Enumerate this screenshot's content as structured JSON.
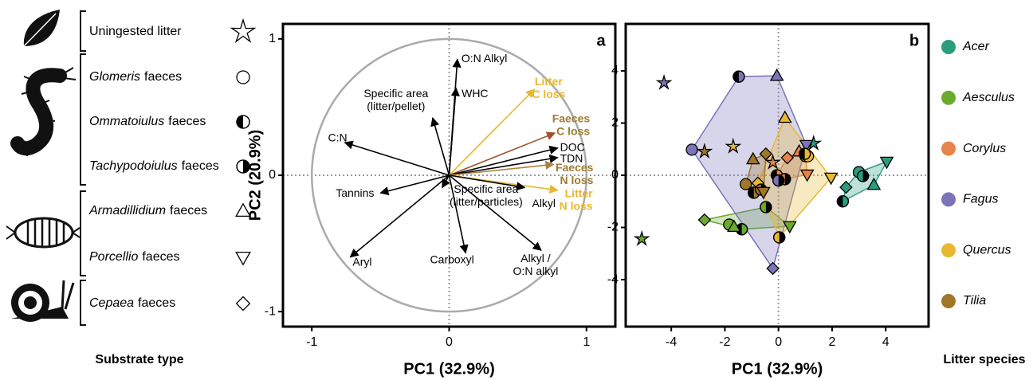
{
  "chart_data": [
    {
      "type": "biplot",
      "title": "a",
      "xlabel": "PC1 (32.9%)",
      "ylabel": "PC2 (20.9%)",
      "xlim": [
        -1.21,
        1.21
      ],
      "ylim": [
        -1.11,
        1.11
      ],
      "xticks": [
        -1,
        0,
        1
      ],
      "yticks": [
        -1,
        0,
        1
      ],
      "zero_lines": true,
      "circle_radius": 1,
      "loadings": [
        {
          "label": [
            "O:N Alkyl"
          ],
          "x": 0.06,
          "y": 0.85,
          "color": "#000000"
        },
        {
          "label": [
            "WHC"
          ],
          "x": 0.05,
          "y": 0.64,
          "color": "#000000"
        },
        {
          "label": [
            "Litter",
            "C loss"
          ],
          "x": 0.62,
          "y": 0.63,
          "color": "#e8b830"
        },
        {
          "label": [
            "Specific area",
            "(litter/pellet)"
          ],
          "x": -0.12,
          "y": 0.42,
          "color": "#000000"
        },
        {
          "label": [
            "C:N"
          ],
          "x": -0.76,
          "y": 0.24,
          "color": "#000000"
        },
        {
          "label": [
            "Faeces",
            "C loss"
          ],
          "x": 0.77,
          "y": 0.31,
          "color": "#a0522d",
          "label_color": "#a07a30"
        },
        {
          "label": [
            "DOC"
          ],
          "x": 0.79,
          "y": 0.2,
          "color": "#000000"
        },
        {
          "label": [
            "TDN"
          ],
          "x": 0.79,
          "y": 0.13,
          "color": "#000000"
        },
        {
          "label": [
            "Faeces",
            "N loss"
          ],
          "x": 0.76,
          "y": 0.08,
          "color": "#b08040",
          "label_color": "#a07a30"
        },
        {
          "label": [
            "Litter",
            "N loss"
          ],
          "x": 0.79,
          "y": -0.11,
          "color": "#e8b830"
        },
        {
          "label": [
            "Alkyl"
          ],
          "x": 0.55,
          "y": -0.09,
          "color": "#000000"
        },
        {
          "label": [
            "Tannins"
          ],
          "x": -0.5,
          "y": -0.13,
          "color": "#000000"
        },
        {
          "label": [
            "Specific area",
            "(litter/particles)"
          ],
          "x": -0.05,
          "y": -0.09,
          "color": "#000000"
        },
        {
          "label": [
            "Aryl"
          ],
          "x": -0.72,
          "y": -0.6,
          "color": "#000000"
        },
        {
          "label": [
            "Carboxyl"
          ],
          "x": 0.12,
          "y": -0.57,
          "color": "#000000"
        },
        {
          "label": [
            "Alkyl /",
            "O:N alkyl"
          ],
          "x": 0.67,
          "y": -0.55,
          "color": "#000000"
        }
      ]
    },
    {
      "type": "scatter",
      "title": "b",
      "xlabel": "PC1 (32.9%)",
      "xlim": [
        -5.7,
        5.6
      ],
      "ylim": [
        -5.8,
        5.8
      ],
      "xticks": [
        -4,
        -2,
        0,
        2,
        4
      ],
      "yticks": [
        -4,
        -2,
        0,
        2,
        4
      ],
      "zero_lines": true,
      "hulls": true,
      "legend_title": "Litter species",
      "substrate_legend_title": "Substrate type",
      "substrates": [
        {
          "text": "Uningested litter",
          "marker": "star"
        },
        {
          "genus": "Glomeris",
          "text": "faeces",
          "marker": "circle"
        },
        {
          "genus": "Ommatoiulus",
          "text": "faeces",
          "marker": "half-left"
        },
        {
          "genus": "Tachypodoiulus",
          "text": "faeces",
          "marker": "half-right"
        },
        {
          "genus": "Armadillidium",
          "text": "faeces",
          "marker": "triangle"
        },
        {
          "genus": "Porcellio",
          "text": "faeces",
          "marker": "triangle-down"
        },
        {
          "genus": "Cepaea",
          "text": "faeces",
          "marker": "diamond"
        }
      ],
      "series": [
        {
          "name": "Acer",
          "color": "#2a9d7e",
          "x": [
            1.31,
            3.0,
            2.4,
            3.15,
            3.56,
            4.04,
            2.52
          ],
          "y": [
            1.22,
            0.12,
            -1.0,
            -0.03,
            -0.37,
            0.52,
            -0.46
          ]
        },
        {
          "name": "Aesculus",
          "color": "#6aab2e",
          "x": [
            -5.1,
            -1.84,
            -1.37,
            -0.47,
            -1.66,
            0.42,
            -2.76
          ],
          "y": [
            -2.44,
            -1.89,
            -2.07,
            -1.22,
            -1.98,
            -1.95,
            -1.71
          ]
        },
        {
          "name": "Corylus",
          "color": "#e8844a",
          "x": [
            -0.21,
            1.01,
            -0.06,
            0.24,
            0.77,
            1.07,
            0.33
          ],
          "y": [
            0.49,
            0.73,
            0.0,
            -0.15,
            0.91,
            0.03,
            0.67
          ]
        },
        {
          "name": "Fagus",
          "color": "#7b74b8",
          "x": [
            -4.27,
            -3.23,
            -1.48,
            0.0,
            -0.06,
            1.04,
            -0.21
          ],
          "y": [
            3.54,
            0.98,
            3.78,
            -0.2,
            3.81,
            1.16,
            -3.57
          ]
        },
        {
          "name": "Quercus",
          "color": "#e8b830",
          "x": [
            -1.69,
            1.1,
            0.98,
            0.03,
            0.24,
            1.96,
            -0.77
          ],
          "y": [
            1.1,
            0.73,
            0.82,
            -2.38,
            2.2,
            -0.09,
            -0.3
          ]
        },
        {
          "name": "Tilia",
          "color": "#a0762a",
          "x": [
            -2.76,
            -1.22,
            -0.92,
            -0.65,
            -0.95,
            -0.56,
            -0.47
          ],
          "y": [
            0.91,
            -0.34,
            -0.67,
            -0.55,
            0.61,
            -0.64,
            0.82
          ]
        }
      ]
    }
  ]
}
